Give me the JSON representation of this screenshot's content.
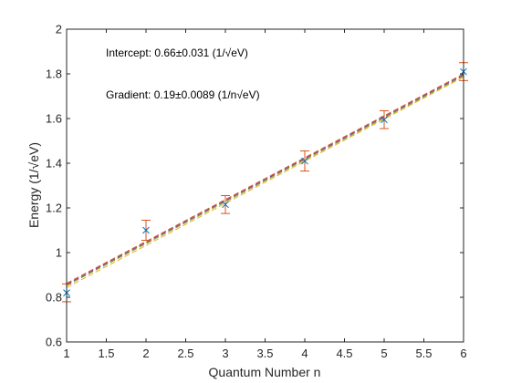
{
  "chart_data": {
    "type": "scatter",
    "title": "",
    "xlabel": "Quantum Number n",
    "ylabel": "Energy (1/√eV)",
    "xlim": [
      1,
      6
    ],
    "ylim": [
      0.6,
      2
    ],
    "x_ticks": [
      "1",
      "1.5",
      "2",
      "2.5",
      "3",
      "3.5",
      "4",
      "4.5",
      "5",
      "5.5",
      "6"
    ],
    "y_ticks": [
      "0.6",
      "0.8",
      "1",
      "1.2",
      "1.4",
      "1.6",
      "1.8",
      "2"
    ],
    "grid": false,
    "legend": "none",
    "points": {
      "x": [
        1,
        2,
        3,
        4,
        5,
        6
      ],
      "y": [
        0.82,
        1.1,
        1.215,
        1.41,
        1.595,
        1.81
      ],
      "error": [
        0.04,
        0.045,
        0.04,
        0.045,
        0.04,
        0.04
      ],
      "marker": "x",
      "marker_color": "#0072bd",
      "errorbar_color": "#d95319"
    },
    "fit_lines": [
      {
        "intercept": 0.675,
        "slope": 0.1875,
        "color": "#d95319"
      },
      {
        "intercept": 0.67,
        "slope": 0.1875,
        "color": "#7e2f8e"
      },
      {
        "intercept": 0.665,
        "slope": 0.1875,
        "color": "#77ac30"
      },
      {
        "intercept": 0.655,
        "slope": 0.1885,
        "color": "#edb120"
      }
    ],
    "annotations": [
      {
        "text": "Intercept: 0.66±0.031 (1/√eV)"
      },
      {
        "text": "Gradient: 0.19±0.0089 (1/n√eV)"
      }
    ]
  }
}
